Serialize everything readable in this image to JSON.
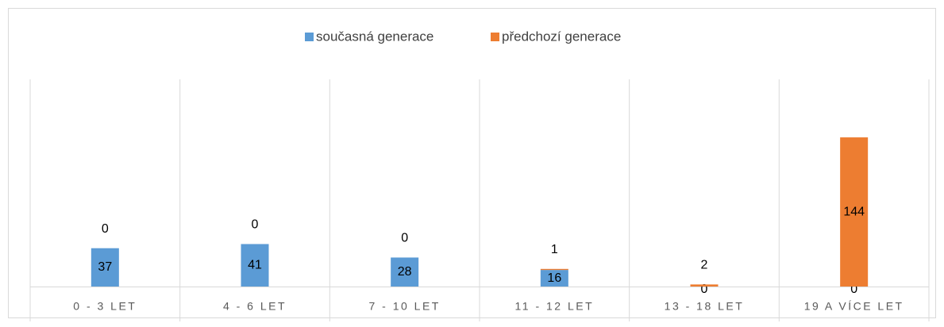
{
  "chart_data": {
    "type": "stacked_bar",
    "categories": [
      "0 - 3 LET",
      "4 - 6 LET",
      "7 - 10 LET",
      "11 - 12 LET",
      "13 - 18 LET",
      "19 A VÍCE LET"
    ],
    "series": [
      {
        "name": "současná generace",
        "color": "#5b9bd5",
        "values": [
          37,
          41,
          28,
          16,
          0,
          0
        ]
      },
      {
        "name": "předchozí generace",
        "color": "#ed7d31",
        "values": [
          0,
          0,
          0,
          1,
          2,
          144
        ]
      }
    ],
    "ylim": [
      0,
      200
    ],
    "legend": "top",
    "grid": true
  }
}
